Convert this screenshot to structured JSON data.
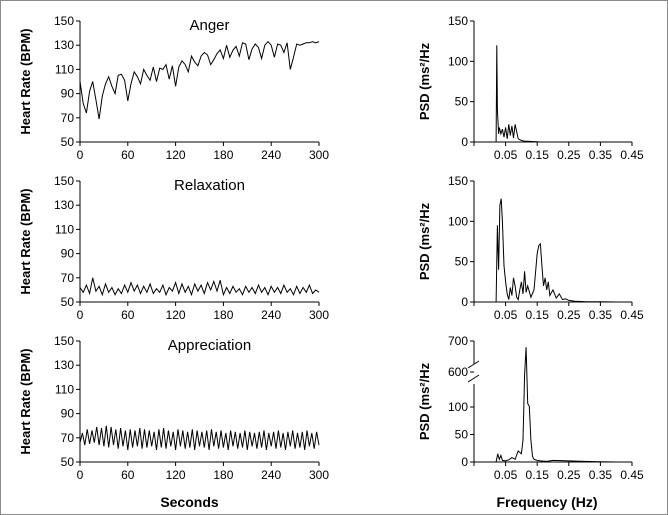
{
  "chart_data": [
    {
      "type": "line",
      "title": "Anger",
      "ylabel": "Heart Rate (BPM)",
      "xlabel": "",
      "xlim": [
        0,
        300
      ],
      "ylim": [
        50,
        150
      ],
      "xticks": [
        "0",
        "60",
        "120",
        "180",
        "240",
        "300"
      ],
      "yticks": [
        "50",
        "70",
        "90",
        "110",
        "130",
        "150"
      ],
      "series": [
        {
          "x": [
            0,
            4,
            8,
            12,
            16,
            20,
            24,
            28,
            32,
            36,
            40,
            44,
            48,
            52,
            56,
            60,
            64,
            68,
            72,
            76,
            80,
            84,
            88,
            92,
            96,
            100,
            104,
            108,
            112,
            116,
            120,
            124,
            128,
            132,
            136,
            140,
            144,
            148,
            152,
            156,
            160,
            164,
            168,
            172,
            176,
            180,
            184,
            188,
            192,
            196,
            200,
            204,
            208,
            212,
            216,
            220,
            224,
            228,
            232,
            236,
            240,
            244,
            248,
            252,
            256,
            260,
            264,
            268,
            272,
            276,
            280,
            284,
            288,
            292,
            296,
            300
          ],
          "y": [
            100,
            82,
            74,
            92,
            100,
            85,
            69,
            88,
            98,
            104,
            96,
            90,
            105,
            106,
            101,
            84,
            98,
            108,
            104,
            98,
            110,
            105,
            101,
            112,
            100,
            111,
            110,
            114,
            102,
            113,
            96,
            112,
            117,
            114,
            108,
            121,
            116,
            113,
            121,
            124,
            122,
            114,
            118,
            123,
            126,
            119,
            130,
            120,
            126,
            129,
            121,
            132,
            131,
            118,
            127,
            131,
            128,
            119,
            130,
            133,
            130,
            120,
            131,
            130,
            124,
            132,
            110,
            120,
            131,
            130,
            131,
            132,
            132,
            133,
            132,
            133
          ]
        }
      ]
    },
    {
      "type": "line",
      "title": "",
      "ylabel": "PSD (ms²/Hz",
      "xlabel": "",
      "xlim": [
        -0.05,
        0.45
      ],
      "ylim": [
        0,
        150
      ],
      "xticks": [
        "0.05",
        "0.15",
        "0.25",
        "0.35",
        "0.45"
      ],
      "yticks": [
        "0",
        "50",
        "100",
        "150"
      ],
      "series": [
        {
          "x": [
            0.02,
            0.022,
            0.024,
            0.026,
            0.028,
            0.03,
            0.035,
            0.04,
            0.045,
            0.05,
            0.055,
            0.06,
            0.065,
            0.07,
            0.075,
            0.08,
            0.09,
            0.1,
            0.11,
            0.12,
            0.14,
            0.16
          ],
          "y": [
            0,
            120,
            40,
            25,
            10,
            18,
            10,
            16,
            6,
            18,
            4,
            22,
            8,
            20,
            5,
            22,
            4,
            2,
            1,
            1,
            0.5,
            0
          ]
        }
      ]
    },
    {
      "type": "line",
      "title": "Relaxation",
      "ylabel": "Heart Rate (BPM)",
      "xlabel": "",
      "xlim": [
        0,
        300
      ],
      "ylim": [
        50,
        150
      ],
      "xticks": [
        "0",
        "60",
        "120",
        "180",
        "240",
        "300"
      ],
      "yticks": [
        "50",
        "70",
        "90",
        "110",
        "130",
        "150"
      ],
      "series": [
        {
          "x": [
            0,
            4,
            8,
            12,
            16,
            20,
            24,
            28,
            32,
            36,
            40,
            44,
            48,
            52,
            56,
            60,
            64,
            68,
            72,
            76,
            80,
            84,
            88,
            92,
            96,
            100,
            104,
            108,
            112,
            116,
            120,
            124,
            128,
            132,
            136,
            140,
            144,
            148,
            152,
            156,
            160,
            164,
            168,
            172,
            176,
            180,
            184,
            188,
            192,
            196,
            200,
            204,
            208,
            212,
            216,
            220,
            224,
            228,
            232,
            236,
            240,
            244,
            248,
            252,
            256,
            260,
            264,
            268,
            272,
            276,
            280,
            284,
            288,
            292,
            296,
            300
          ],
          "y": [
            62,
            58,
            64,
            57,
            70,
            59,
            63,
            56,
            65,
            58,
            62,
            56,
            61,
            57,
            64,
            58,
            66,
            59,
            64,
            57,
            63,
            58,
            65,
            57,
            61,
            58,
            64,
            56,
            62,
            59,
            66,
            57,
            65,
            58,
            63,
            56,
            65,
            59,
            64,
            57,
            66,
            60,
            67,
            59,
            68,
            56,
            62,
            57,
            63,
            58,
            61,
            56,
            63,
            58,
            62,
            57,
            64,
            58,
            62,
            56,
            63,
            58,
            62,
            57,
            64,
            58,
            61,
            56,
            63,
            57,
            62,
            58,
            64,
            57,
            60,
            58
          ]
        }
      ]
    },
    {
      "type": "line",
      "title": "",
      "ylabel": "PSD (ms²/Hz",
      "xlabel": "",
      "xlim": [
        -0.05,
        0.45
      ],
      "ylim": [
        0,
        150
      ],
      "xticks": [
        "0.05",
        "0.15",
        "0.25",
        "0.35",
        "0.45"
      ],
      "yticks": [
        "0",
        "50",
        "100",
        "150"
      ],
      "series": [
        {
          "x": [
            0.02,
            0.024,
            0.028,
            0.032,
            0.036,
            0.04,
            0.045,
            0.05,
            0.055,
            0.06,
            0.065,
            0.07,
            0.075,
            0.08,
            0.085,
            0.09,
            0.095,
            0.1,
            0.105,
            0.11,
            0.115,
            0.12,
            0.13,
            0.14,
            0.15,
            0.155,
            0.16,
            0.165,
            0.17,
            0.175,
            0.18,
            0.185,
            0.19,
            0.2,
            0.21,
            0.22,
            0.23,
            0.24,
            0.25,
            0.27,
            0.3,
            0.35,
            0.4
          ],
          "y": [
            0,
            95,
            40,
            120,
            128,
            100,
            45,
            25,
            10,
            3,
            18,
            8,
            30,
            20,
            6,
            3,
            15,
            25,
            10,
            38,
            12,
            20,
            6,
            15,
            60,
            70,
            72,
            45,
            20,
            30,
            15,
            25,
            8,
            15,
            5,
            10,
            3,
            4,
            2,
            1,
            0.5,
            0.3,
            0
          ]
        }
      ]
    },
    {
      "type": "line",
      "title": "Appreciation",
      "ylabel": "Heart Rate (BPM)",
      "xlabel": "Seconds",
      "xlim": [
        0,
        300
      ],
      "ylim": [
        50,
        150
      ],
      "xticks": [
        "0",
        "60",
        "120",
        "180",
        "240",
        "300"
      ],
      "yticks": [
        "50",
        "70",
        "90",
        "110",
        "130",
        "150"
      ],
      "series": [
        {
          "x": [
            0,
            3,
            6,
            9,
            12,
            15,
            18,
            21,
            24,
            27,
            30,
            33,
            36,
            39,
            42,
            45,
            48,
            51,
            54,
            57,
            60,
            63,
            66,
            69,
            72,
            75,
            78,
            81,
            84,
            87,
            90,
            93,
            96,
            99,
            102,
            105,
            108,
            111,
            114,
            117,
            120,
            123,
            126,
            129,
            132,
            135,
            138,
            141,
            144,
            147,
            150,
            153,
            156,
            159,
            162,
            165,
            168,
            171,
            174,
            177,
            180,
            183,
            186,
            189,
            192,
            195,
            198,
            201,
            204,
            207,
            210,
            213,
            216,
            219,
            222,
            225,
            228,
            231,
            234,
            237,
            240,
            243,
            246,
            249,
            252,
            255,
            258,
            261,
            264,
            267,
            270,
            273,
            276,
            279,
            282,
            285,
            288,
            291,
            294,
            297,
            300
          ],
          "y": [
            66,
            74,
            64,
            77,
            65,
            76,
            66,
            79,
            64,
            78,
            63,
            80,
            62,
            79,
            64,
            77,
            61,
            78,
            63,
            76,
            60,
            77,
            62,
            76,
            63,
            78,
            61,
            77,
            62,
            76,
            63,
            75,
            60,
            77,
            62,
            78,
            61,
            76,
            63,
            75,
            60,
            77,
            63,
            76,
            61,
            75,
            62,
            77,
            60,
            76,
            63,
            75,
            62,
            76,
            60,
            77,
            63,
            75,
            61,
            76,
            62,
            74,
            60,
            76,
            63,
            75,
            61,
            74,
            62,
            76,
            60,
            75,
            63,
            74,
            61,
            75,
            62,
            76,
            60,
            74,
            63,
            75,
            61,
            76,
            62,
            74,
            60,
            75,
            63,
            76,
            61,
            74,
            62,
            75,
            60,
            76,
            63,
            74,
            61,
            75,
            64
          ]
        }
      ]
    },
    {
      "type": "line",
      "title": "",
      "ylabel": "PSD (ms²/Hz",
      "xlabel": "Frequency (Hz)",
      "xlim": [
        -0.05,
        0.45
      ],
      "ylim": [
        0,
        700
      ],
      "axis_break": true,
      "xticks": [
        "0.05",
        "0.15",
        "0.25",
        "0.35",
        "0.45"
      ],
      "yticks": [
        "0",
        "50",
        "100",
        "600",
        "700"
      ],
      "series": [
        {
          "x": [
            0.02,
            0.025,
            0.03,
            0.035,
            0.04,
            0.05,
            0.06,
            0.07,
            0.08,
            0.09,
            0.1,
            0.105,
            0.11,
            0.115,
            0.12,
            0.125,
            0.13,
            0.135,
            0.14,
            0.15,
            0.16,
            0.18,
            0.2,
            0.25,
            0.3,
            0.35,
            0.4
          ],
          "y": [
            0,
            15,
            5,
            12,
            3,
            2,
            4,
            8,
            5,
            20,
            15,
            40,
            560,
            680,
            150,
            110,
            40,
            10,
            5,
            3,
            2,
            1,
            3,
            2,
            1,
            0.5,
            0
          ]
        }
      ]
    }
  ]
}
